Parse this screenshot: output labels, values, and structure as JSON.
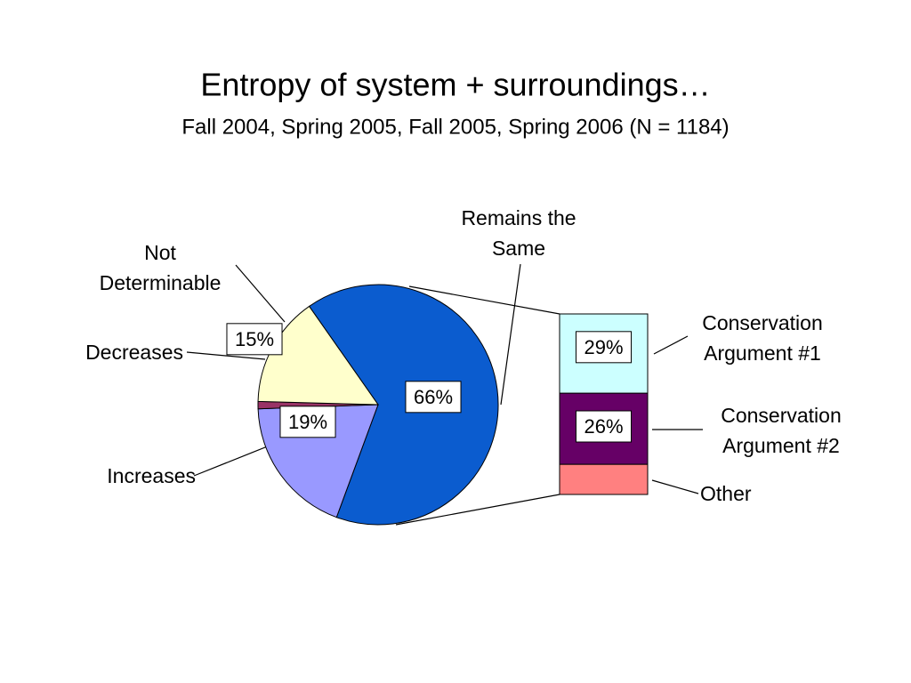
{
  "chart_data": {
    "type": "pie_of_bar",
    "title": "Entropy of system + surroundings…",
    "subtitle": "Fall 2004, Spring 2005, Fall 2005, Spring 2006 (N = 1184)",
    "categories": [
      "Remains the Same",
      "Increases",
      "Decreases",
      "Not Determinable"
    ],
    "values": [
      66,
      19,
      1,
      15
    ],
    "value_labels": [
      "66%",
      "19%",
      null,
      "15%"
    ],
    "colors": [
      "#0b5ccf",
      "#9999ff",
      "#993366",
      "#ffffcc"
    ],
    "breakdown": {
      "categories": [
        "Conservation Argument #1",
        "Conservation Argument #2",
        "Other"
      ],
      "values": [
        29,
        26,
        11
      ],
      "value_labels": [
        "29%",
        "26%",
        null
      ],
      "colors": [
        "#ccffff",
        "#660066",
        "#ff8080"
      ]
    }
  }
}
